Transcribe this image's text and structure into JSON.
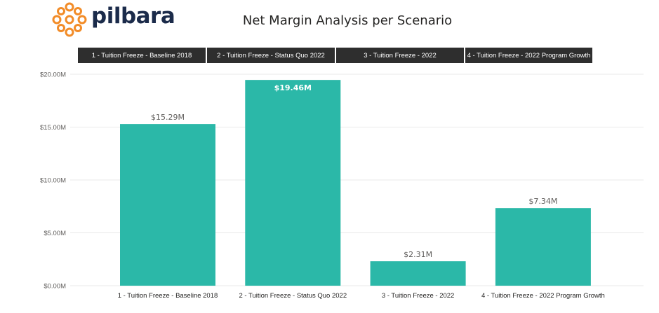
{
  "header": {
    "logo_text": "pilbara",
    "title": "Net Margin Analysis per Scenario"
  },
  "scenario_buttons": [
    "1 - Tuition Freeze - Baseline 2018",
    "2 - Tuition Freeze - Status Quo 2022",
    "3 - Tuition Freeze - 2022",
    "4 - Tuition Freeze - 2022 Program Growth"
  ],
  "colors": {
    "bar": "#2bb8a8",
    "logo_orange": "#f28c28",
    "logo_navy": "#1b2b4a",
    "button_bg": "#2e2e2e"
  },
  "chart_data": {
    "type": "bar",
    "title": "Net Margin Analysis per Scenario",
    "categories": [
      "1 - Tuition Freeze - Baseline 2018",
      "2 - Tuition Freeze - Status Quo 2022",
      "3 - Tuition Freeze - 2022",
      "4 - Tuition Freeze - 2022 Program Growth"
    ],
    "values": [
      15.29,
      19.46,
      2.31,
      7.34
    ],
    "data_labels": [
      "$15.29M",
      "$19.46M",
      "$2.31M",
      "$7.34M"
    ],
    "data_label_inside": [
      false,
      true,
      false,
      false
    ],
    "y_ticks": [
      0,
      5,
      10,
      15,
      20
    ],
    "y_tick_labels": [
      "$0.00M",
      "$5.00M",
      "$10.00M",
      "$15.00M",
      "$20.00M"
    ],
    "ylim": [
      0,
      20
    ],
    "grid": true,
    "legend": "none",
    "xlabel": "",
    "ylabel": ""
  }
}
